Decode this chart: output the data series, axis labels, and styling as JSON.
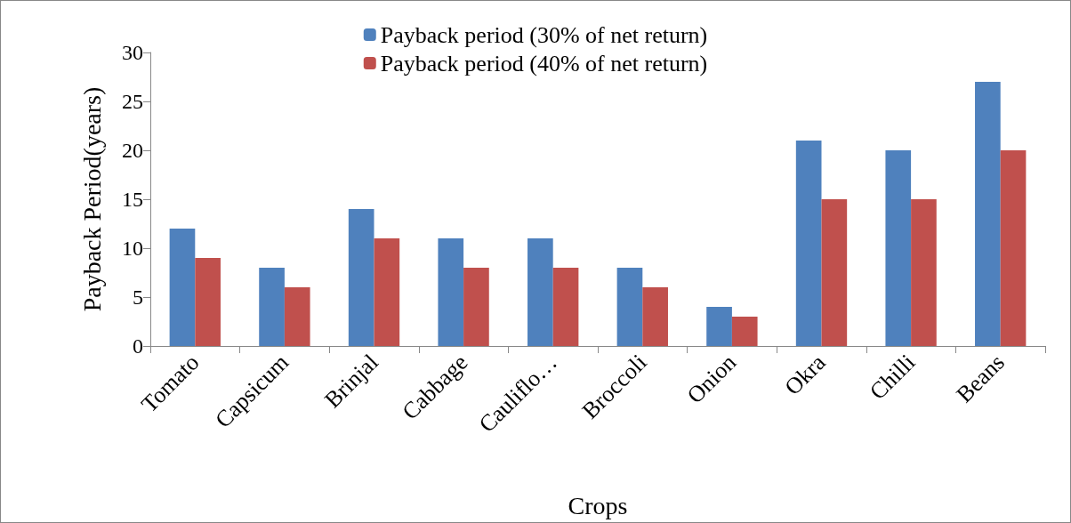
{
  "chart_data": {
    "type": "bar",
    "xlabel": "Crops",
    "ylabel": "Payback Period(years)",
    "categories": [
      "Tomato",
      "Capsicum",
      "Brinjal",
      "Cabbage",
      "Cauliflo…",
      "Broccoli",
      "Onion",
      "Okra",
      "Chilli",
      "Beans"
    ],
    "series": [
      {
        "name": "Payback period (30% of net return)",
        "color": "#4f81bd",
        "values": [
          12,
          8,
          14,
          11,
          11,
          8,
          4,
          21,
          20,
          27
        ]
      },
      {
        "name": "Payback period (40% of net return)",
        "color": "#c0504d",
        "values": [
          9,
          6,
          11,
          8,
          8,
          6,
          3,
          15,
          15,
          20
        ]
      }
    ],
    "ylim": [
      0,
      30
    ],
    "yticks": [
      0,
      5,
      10,
      15,
      20,
      25,
      30
    ],
    "grid": false,
    "legend": "top"
  }
}
